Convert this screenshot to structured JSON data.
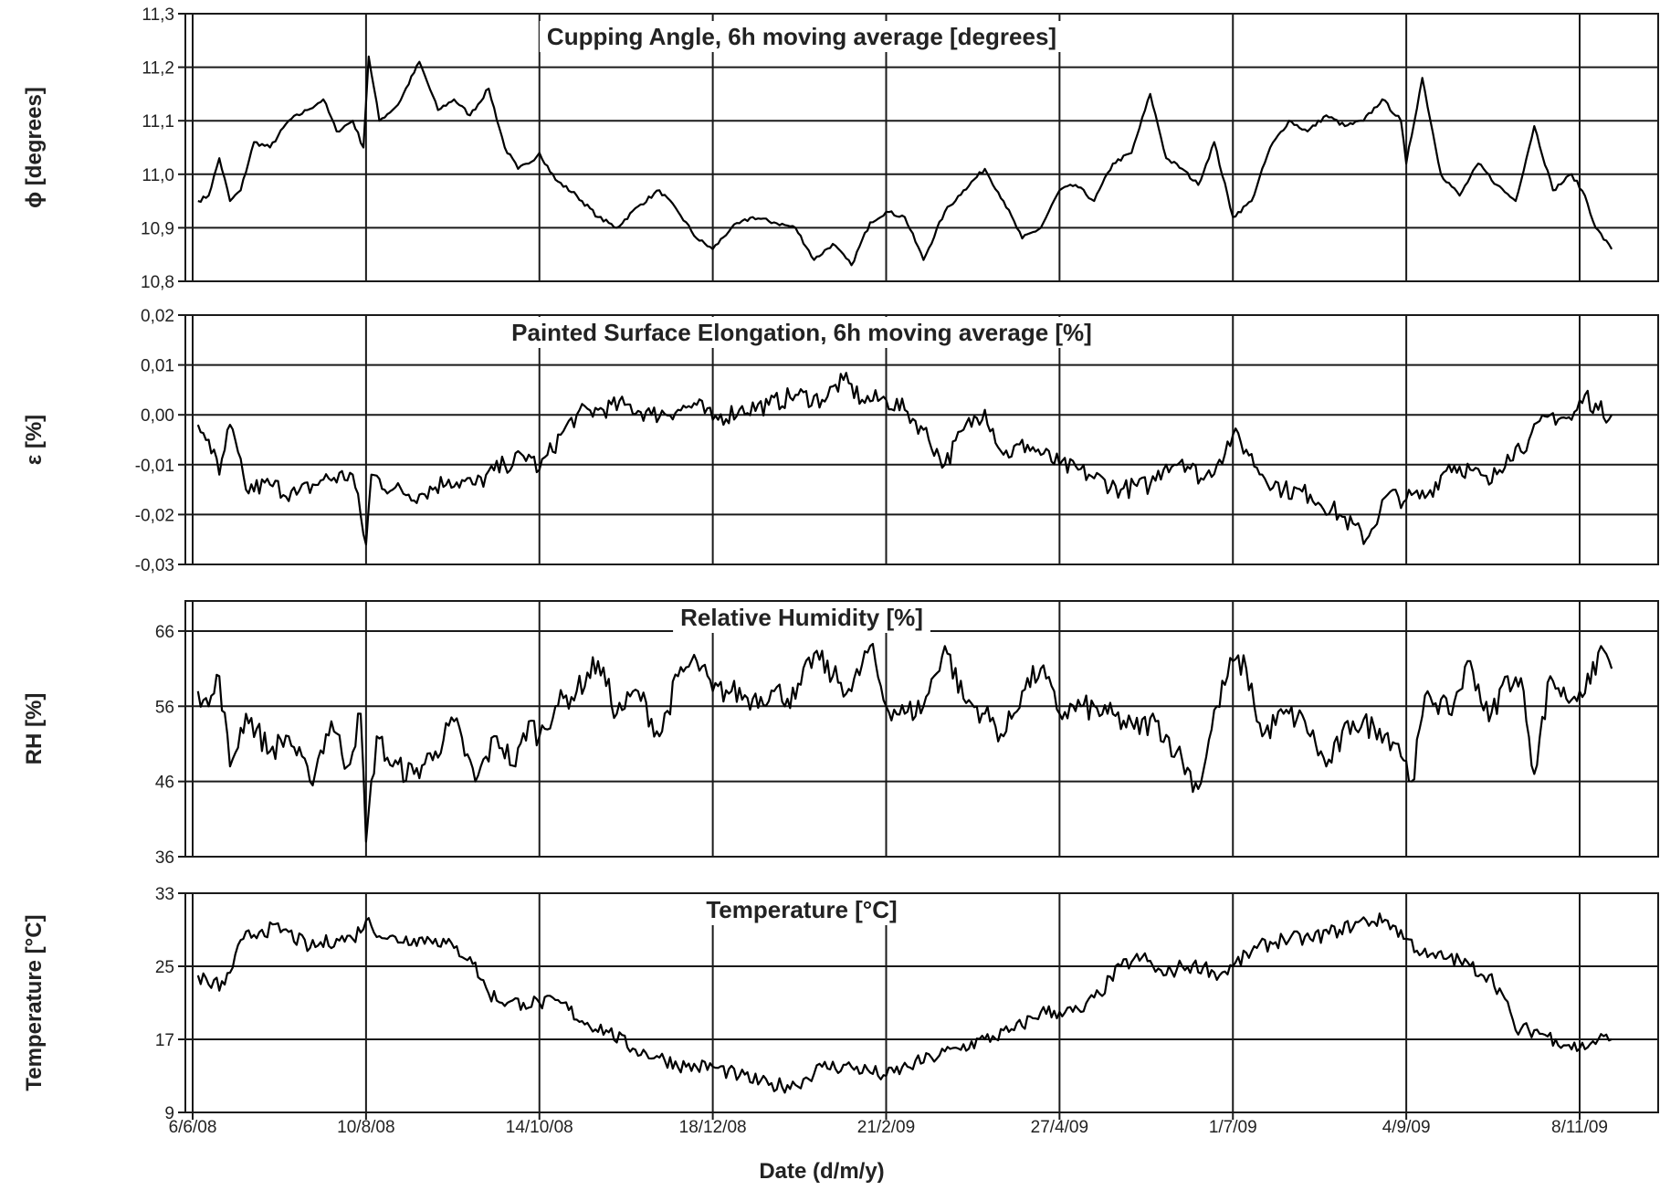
{
  "figure": {
    "x_axis_label": "Date (d/m/y)",
    "x_tick_labels": [
      "6/6/08",
      "10/8/08",
      "14/10/08",
      "18/12/08",
      "21/2/09",
      "27/4/09",
      "1/7/09",
      "4/9/09",
      "8/11/09"
    ],
    "x_tick_dates": [
      "2008-06-06",
      "2008-08-10",
      "2008-10-14",
      "2008-12-18",
      "2009-02-21",
      "2009-04-27",
      "2009-07-01",
      "2009-09-04",
      "2009-11-08"
    ],
    "x_range": [
      "2008-06-06",
      "2009-12-30"
    ],
    "line_color": "#000000",
    "grid_color": "#1a1a1a"
  },
  "chart_data": [
    {
      "type": "line",
      "title": "Cupping Angle, 6h moving average [degrees]",
      "ylabel": "ϕ [degrees]",
      "ylim": [
        10.8,
        11.3
      ],
      "yticks": [
        "11,3",
        "11,2",
        "11,1",
        "11,0",
        "10,9",
        "10,8"
      ],
      "ytick_values": [
        11.3,
        11.2,
        11.1,
        11.0,
        10.9,
        10.8
      ],
      "grid": true,
      "series": [
        {
          "x": [
            "2008-06-08",
            "2008-06-12",
            "2008-06-16",
            "2008-06-20",
            "2008-06-24",
            "2008-06-29",
            "2008-07-05",
            "2008-07-12",
            "2008-07-19",
            "2008-07-25",
            "2008-07-30",
            "2008-08-05",
            "2008-08-09",
            "2008-08-11",
            "2008-08-15",
            "2008-08-22",
            "2008-08-30",
            "2008-09-06",
            "2008-09-12",
            "2008-09-18",
            "2008-09-25",
            "2008-10-01",
            "2008-10-06",
            "2008-10-10",
            "2008-10-14",
            "2008-10-20",
            "2008-10-28",
            "2008-11-05",
            "2008-11-12",
            "2008-11-20",
            "2008-11-28",
            "2008-12-05",
            "2008-12-12",
            "2008-12-18",
            "2008-12-25",
            "2009-01-02",
            "2009-01-10",
            "2009-01-18",
            "2009-01-25",
            "2009-02-01",
            "2009-02-08",
            "2009-02-15",
            "2009-02-21",
            "2009-02-28",
            "2009-03-07",
            "2009-03-15",
            "2009-03-22",
            "2009-03-30",
            "2009-04-06",
            "2009-04-13",
            "2009-04-20",
            "2009-04-27",
            "2009-05-03",
            "2009-05-10",
            "2009-05-17",
            "2009-05-24",
            "2009-05-31",
            "2009-06-06",
            "2009-06-12",
            "2009-06-18",
            "2009-06-24",
            "2009-07-01",
            "2009-07-08",
            "2009-07-15",
            "2009-07-22",
            "2009-07-29",
            "2009-08-05",
            "2009-08-12",
            "2009-08-19",
            "2009-08-26",
            "2009-09-02",
            "2009-09-04",
            "2009-09-10",
            "2009-09-17",
            "2009-09-24",
            "2009-10-01",
            "2009-10-08",
            "2009-10-15",
            "2009-10-22",
            "2009-10-29",
            "2009-11-05",
            "2009-11-10",
            "2009-11-14",
            "2009-11-20"
          ],
          "y": [
            10.95,
            10.96,
            11.03,
            10.95,
            10.97,
            11.06,
            11.05,
            11.1,
            11.12,
            11.14,
            11.08,
            11.1,
            11.05,
            11.22,
            11.1,
            11.13,
            11.21,
            11.12,
            11.14,
            11.11,
            11.16,
            11.05,
            11.01,
            11.02,
            11.04,
            10.99,
            10.96,
            10.92,
            10.9,
            10.94,
            10.97,
            10.93,
            10.88,
            10.86,
            10.9,
            10.92,
            10.91,
            10.9,
            10.84,
            10.87,
            10.83,
            10.91,
            10.93,
            10.92,
            10.84,
            10.93,
            10.97,
            11.01,
            10.95,
            10.88,
            10.9,
            10.97,
            10.98,
            10.95,
            11.02,
            11.04,
            11.15,
            11.03,
            11.01,
            10.98,
            11.06,
            10.92,
            10.95,
            11.05,
            11.1,
            11.08,
            11.11,
            11.09,
            11.1,
            11.14,
            11.1,
            11.02,
            11.18,
            11.0,
            10.96,
            11.02,
            10.98,
            10.95,
            11.09,
            10.97,
            11.0,
            10.96,
            10.9,
            10.86
          ]
        }
      ]
    },
    {
      "type": "line",
      "title": "Painted Surface Elongation, 6h moving average [%]",
      "ylabel": "ε [%]",
      "ylim": [
        -0.03,
        0.02
      ],
      "yticks": [
        "0,02",
        "0,01",
        "0,00",
        "-0,01",
        "-0,02",
        "-0,03"
      ],
      "ytick_values": [
        0.02,
        0.01,
        0.0,
        -0.01,
        -0.02,
        -0.03
      ],
      "grid": true,
      "series": [
        {
          "x": [
            "2008-06-08",
            "2008-06-12",
            "2008-06-16",
            "2008-06-20",
            "2008-06-26",
            "2008-07-05",
            "2008-07-15",
            "2008-07-25",
            "2008-08-05",
            "2008-08-10",
            "2008-08-12",
            "2008-08-20",
            "2008-08-30",
            "2008-09-10",
            "2008-09-20",
            "2008-10-01",
            "2008-10-10",
            "2008-10-14",
            "2008-10-22",
            "2008-10-28",
            "2008-11-05",
            "2008-11-15",
            "2008-11-25",
            "2008-12-05",
            "2008-12-12",
            "2008-12-18",
            "2008-12-28",
            "2009-01-08",
            "2009-01-18",
            "2009-01-28",
            "2009-02-05",
            "2009-02-12",
            "2009-02-21",
            "2009-02-28",
            "2009-03-07",
            "2009-03-15",
            "2009-03-22",
            "2009-03-30",
            "2009-04-06",
            "2009-04-15",
            "2009-04-27",
            "2009-05-08",
            "2009-05-20",
            "2009-05-31",
            "2009-06-06",
            "2009-06-12",
            "2009-06-20",
            "2009-06-26",
            "2009-07-01",
            "2009-07-06",
            "2009-07-12",
            "2009-07-20",
            "2009-07-30",
            "2009-08-10",
            "2009-08-20",
            "2009-08-28",
            "2009-09-04",
            "2009-09-12",
            "2009-09-20",
            "2009-09-28",
            "2009-10-05",
            "2009-10-12",
            "2009-10-20",
            "2009-10-28",
            "2009-11-05",
            "2009-11-10",
            "2009-11-15",
            "2009-11-20"
          ],
          "y": [
            -0.002,
            -0.005,
            -0.012,
            -0.002,
            -0.015,
            -0.014,
            -0.016,
            -0.013,
            -0.012,
            -0.026,
            -0.012,
            -0.015,
            -0.016,
            -0.013,
            -0.014,
            -0.01,
            -0.008,
            -0.011,
            -0.004,
            0.0,
            0.001,
            0.002,
            0.0,
            0.001,
            0.002,
            -0.001,
            0.001,
            0.002,
            0.004,
            0.003,
            0.007,
            0.003,
            0.003,
            0.001,
            -0.003,
            -0.01,
            -0.003,
            0.001,
            -0.008,
            -0.006,
            -0.01,
            -0.012,
            -0.015,
            -0.014,
            -0.01,
            -0.009,
            -0.013,
            -0.009,
            -0.004,
            -0.007,
            -0.012,
            -0.015,
            -0.016,
            -0.02,
            -0.025,
            -0.016,
            -0.017,
            -0.016,
            -0.01,
            -0.011,
            -0.014,
            -0.008,
            -0.005,
            0.0,
            -0.001,
            0.004,
            0.001,
            0.0
          ]
        }
      ]
    },
    {
      "type": "line",
      "title": "Relative Humidity [%]",
      "ylabel": "RH [%]",
      "ylim": [
        36,
        70
      ],
      "yticks": [
        "66",
        "56",
        "46",
        "36"
      ],
      "ytick_values": [
        66,
        56,
        46,
        36
      ],
      "grid": true,
      "series": [
        {
          "x": [
            "2008-06-08",
            "2008-06-12",
            "2008-06-16",
            "2008-06-20",
            "2008-06-26",
            "2008-07-05",
            "2008-07-12",
            "2008-07-20",
            "2008-07-28",
            "2008-08-03",
            "2008-08-08",
            "2008-08-10",
            "2008-08-14",
            "2008-08-20",
            "2008-08-28",
            "2008-09-05",
            "2008-09-12",
            "2008-09-20",
            "2008-09-28",
            "2008-10-05",
            "2008-10-10",
            "2008-10-14",
            "2008-10-20",
            "2008-10-28",
            "2008-11-05",
            "2008-11-12",
            "2008-11-20",
            "2008-11-28",
            "2008-12-05",
            "2008-12-12",
            "2008-12-18",
            "2008-12-25",
            "2009-01-02",
            "2009-01-10",
            "2009-01-18",
            "2009-01-25",
            "2009-02-01",
            "2009-02-08",
            "2009-02-15",
            "2009-02-21",
            "2009-02-28",
            "2009-03-07",
            "2009-03-15",
            "2009-03-22",
            "2009-03-30",
            "2009-04-06",
            "2009-04-13",
            "2009-04-20",
            "2009-04-27",
            "2009-05-05",
            "2009-05-15",
            "2009-05-25",
            "2009-06-02",
            "2009-06-10",
            "2009-06-18",
            "2009-06-25",
            "2009-07-01",
            "2009-07-06",
            "2009-07-12",
            "2009-07-20",
            "2009-07-28",
            "2009-08-05",
            "2009-08-15",
            "2009-08-25",
            "2009-09-01",
            "2009-09-06",
            "2009-09-12",
            "2009-09-20",
            "2009-09-28",
            "2009-10-05",
            "2009-10-12",
            "2009-10-18",
            "2009-10-22",
            "2009-10-28",
            "2009-11-03",
            "2009-11-08",
            "2009-11-12",
            "2009-11-16",
            "2009-11-20"
          ],
          "y": [
            58,
            56,
            60,
            48,
            55,
            50,
            52,
            46,
            54,
            48,
            55,
            38,
            52,
            48,
            47,
            50,
            54,
            46,
            52,
            48,
            54,
            52,
            56,
            58,
            62,
            55,
            58,
            52,
            60,
            62,
            58,
            58,
            57,
            58,
            57,
            63,
            60,
            58,
            64,
            56,
            55,
            56,
            64,
            57,
            55,
            52,
            58,
            61,
            55,
            56,
            55,
            53,
            54,
            50,
            45,
            56,
            62,
            61,
            52,
            55,
            54,
            48,
            54,
            53,
            51,
            46,
            58,
            55,
            62,
            54,
            60,
            58,
            47,
            60,
            57,
            58,
            59,
            64,
            61
          ]
        }
      ]
    },
    {
      "type": "line",
      "title": "Temperature [°C]",
      "ylabel": "Temperature [°C]",
      "ylim": [
        9,
        33
      ],
      "yticks": [
        "33",
        "25",
        "17",
        "9"
      ],
      "ytick_values": [
        33,
        25,
        17,
        9
      ],
      "grid": true,
      "series": [
        {
          "x": [
            "2008-06-08",
            "2008-06-12",
            "2008-06-18",
            "2008-06-25",
            "2008-07-02",
            "2008-07-10",
            "2008-07-20",
            "2008-07-30",
            "2008-08-05",
            "2008-08-10",
            "2008-08-18",
            "2008-08-28",
            "2008-09-05",
            "2008-09-12",
            "2008-09-18",
            "2008-09-25",
            "2008-10-02",
            "2008-10-08",
            "2008-10-14",
            "2008-10-22",
            "2008-10-30",
            "2008-11-08",
            "2008-11-18",
            "2008-11-28",
            "2008-12-08",
            "2008-12-18",
            "2008-12-28",
            "2009-01-08",
            "2009-01-18",
            "2009-01-28",
            "2009-02-08",
            "2009-02-21",
            "2009-03-01",
            "2009-03-10",
            "2009-03-20",
            "2009-03-30",
            "2009-04-10",
            "2009-04-20",
            "2009-04-27",
            "2009-05-05",
            "2009-05-12",
            "2009-05-20",
            "2009-05-28",
            "2009-06-05",
            "2009-06-12",
            "2009-06-20",
            "2009-06-26",
            "2009-07-01",
            "2009-07-10",
            "2009-07-20",
            "2009-07-30",
            "2009-08-10",
            "2009-08-20",
            "2009-08-28",
            "2009-09-04",
            "2009-09-12",
            "2009-09-20",
            "2009-09-28",
            "2009-10-05",
            "2009-10-10",
            "2009-10-15",
            "2009-10-22",
            "2009-10-30",
            "2009-11-08",
            "2009-11-15",
            "2009-11-20"
          ],
          "y": [
            24,
            23,
            23,
            28,
            29,
            29,
            27,
            28,
            28,
            30,
            28,
            28,
            28,
            27,
            26,
            22,
            21,
            21,
            21,
            21,
            19,
            18,
            16,
            15,
            14,
            14,
            13,
            12,
            12,
            14,
            14,
            13,
            14,
            15,
            16,
            17,
            18,
            20,
            20,
            20,
            22,
            25,
            26,
            24,
            25,
            25,
            24,
            25,
            27,
            28,
            28,
            29,
            30,
            30,
            28,
            26,
            26,
            25,
            24,
            22,
            18,
            18,
            17,
            16,
            17,
            17
          ]
        }
      ]
    }
  ]
}
